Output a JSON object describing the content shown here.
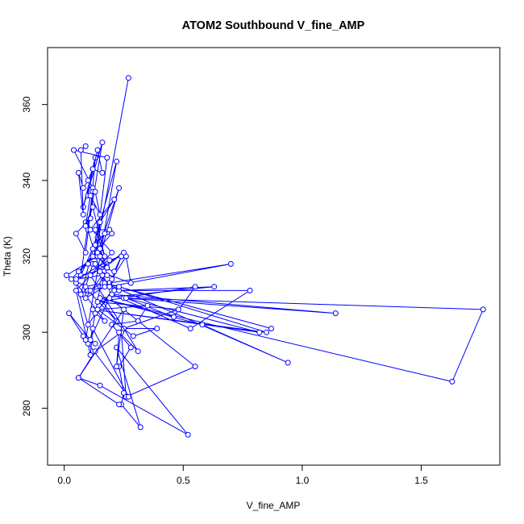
{
  "chart_data": {
    "type": "line",
    "title": "ATOM2 Southbound V_fine_AMP",
    "xlabel": "V_fine_AMP",
    "ylabel": "Theta (K)",
    "xlim": [
      -0.07,
      1.83
    ],
    "ylim": [
      265,
      375
    ],
    "x_ticks": [
      0.0,
      0.5,
      1.0,
      1.5
    ],
    "x_tick_labels": [
      "0.0",
      "0.5",
      "1.0",
      "1.5"
    ],
    "y_ticks": [
      280,
      300,
      320,
      340,
      360
    ],
    "y_tick_labels": [
      "280",
      "300",
      "320",
      "340",
      "360"
    ],
    "grid": false,
    "legend": "none",
    "line_color": "#0000FF",
    "marker": "open-circle",
    "series": [
      {
        "x": [
          0.27,
          0.13,
          0.18,
          0.04,
          0.12,
          0.1,
          0.16,
          0.08,
          0.13,
          0.11,
          0.05,
          0.09,
          0.12,
          0.07,
          0.14,
          0.2,
          0.06,
          0.1,
          0.12,
          0.03,
          0.18,
          0.14,
          0.01,
          0.09,
          0.16,
          0.08,
          0.12,
          0.2,
          0.1,
          0.05,
          0.17,
          0.13,
          0.21,
          0.19,
          0.7,
          0.1,
          0.22,
          0.15,
          0.63,
          0.23,
          0.78,
          0.53,
          0.2,
          1.14,
          0.25,
          1.76,
          1.63,
          0.15,
          0.58,
          0.94,
          0.17,
          0.87,
          0.23,
          0.85,
          0.12,
          0.82,
          0.26,
          0.46,
          0.55,
          0.14,
          0.48,
          0.25,
          0.39,
          0.29,
          0.14,
          0.35,
          0.31,
          0.2,
          0.28,
          0.23,
          0.25,
          0.24,
          0.32,
          0.22,
          0.52,
          0.15,
          0.06,
          0.13,
          0.24,
          0.26,
          0.55,
          0.19,
          0.1,
          0.27,
          0.12,
          0.11,
          0.05,
          0.2,
          0.09,
          0.17,
          0.09,
          0.16,
          0.11,
          0.02,
          0.08,
          0.13,
          0.09,
          0.22,
          0.07,
          0.11
        ],
        "y": [
          367,
          320,
          346,
          348,
          338,
          327,
          350,
          333,
          346,
          330,
          326,
          321,
          337,
          315,
          325,
          326,
          316,
          318,
          320,
          314,
          317,
          320,
          315,
          312,
          313,
          310,
          318,
          311,
          302,
          313,
          303,
          305,
          311,
          313,
          318,
          311,
          303,
          309,
          312,
          311,
          311,
          301,
          310,
          305,
          309,
          306,
          287,
          309,
          302,
          292,
          313,
          301,
          312,
          300,
          306,
          300,
          309,
          304,
          312,
          308,
          306,
          301,
          301,
          299,
          306,
          307,
          303,
          302,
          296,
          291,
          284,
          281,
          275,
          296,
          273,
          286,
          288,
          295,
          300,
          283,
          291,
          309,
          297,
          283,
          301,
          294,
          311,
          321,
          329,
          312,
          309,
          315,
          298,
          305,
          299,
          297,
          298,
          345,
          310,
          311
        ]
      },
      {
        "x": [
          0.09,
          0.07,
          0.08,
          0.06,
          0.08,
          0.1,
          0.12,
          0.14,
          0.16,
          0.12,
          0.1,
          0.13,
          0.15,
          0.11,
          0.09,
          0.12,
          0.17,
          0.13,
          0.21,
          0.11,
          0.19,
          0.17,
          0.13,
          0.15,
          0.14,
          0.23,
          0.15,
          0.12,
          0.18,
          0.15,
          0.18,
          0.16,
          0.05,
          0.19,
          0.24,
          0.19,
          0.13,
          0.21,
          0.24,
          0.2,
          0.26,
          0.28,
          0.15,
          0.25,
          0.11,
          0.31,
          0.23,
          0.22,
          0.25,
          0.06,
          0.23
        ],
        "y": [
          349,
          348,
          331,
          342,
          338,
          340,
          343,
          348,
          342,
          343,
          336,
          337,
          331,
          336,
          328,
          333,
          320,
          327,
          335,
          327,
          327,
          326,
          323,
          329,
          321,
          338,
          320,
          322,
          317,
          322,
          315,
          315,
          314,
          319,
          320,
          312,
          318,
          316,
          320,
          314,
          320,
          313,
          316,
          321,
          315,
          295,
          300,
          291,
          306,
          288,
          281
        ]
      }
    ]
  }
}
